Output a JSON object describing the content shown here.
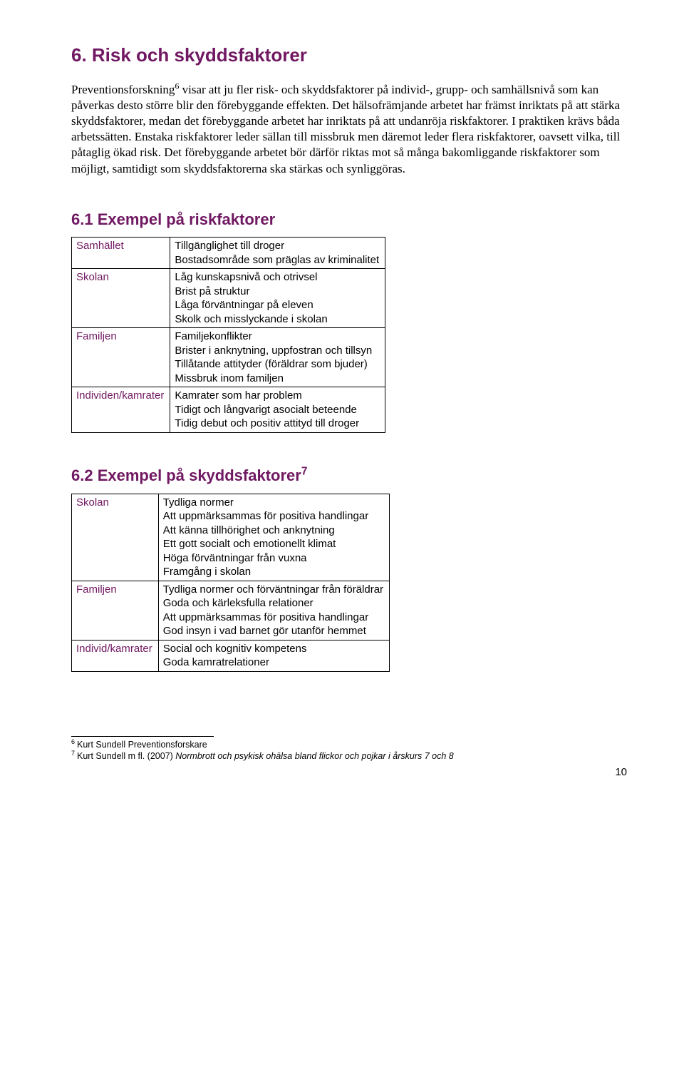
{
  "section6": {
    "title": "6. Risk och skyddsfaktorer",
    "paragraph": "Preventionsforskning",
    "sup1": "6",
    "paragraph_rest": " visar att ju fler risk- och skyddsfaktorer på individ-, grupp- och samhällsnivå som kan påverkas desto större blir den förebyggande effekten. Det hälsofrämjande arbetet har främst inriktats på att stärka skyddsfaktorer, medan det förebyggande arbetet har inriktats på att undanröja riskfaktorer. I praktiken krävs båda arbetssätten. Enstaka riskfaktorer leder sällan till missbruk men däremot leder flera riskfaktorer, oavsett vilka, till påtaglig ökad risk. Det förebyggande arbetet bör därför riktas mot så många bakomliggande riskfaktorer som möjligt, samtidigt som skyddsfaktorerna ska stärkas och synliggöras."
  },
  "section61": {
    "title": "6.1 Exempel på riskfaktorer",
    "rows": [
      {
        "label": "Samhället",
        "content": "Tillgänglighet till droger\nBostadsområde som präglas av kriminalitet"
      },
      {
        "label": "Skolan",
        "content": "Låg kunskapsnivå och otrivsel\nBrist på struktur\nLåga förväntningar på eleven\nSkolk och misslyckande i skolan"
      },
      {
        "label": "Familjen",
        "content": "Familjekonflikter\nBrister i anknytning, uppfostran och tillsyn\nTillåtande attityder (föräldrar som bjuder)\nMissbruk inom familjen"
      },
      {
        "label": "Individen/kamrater",
        "content": "Kamrater som har problem\nTidigt och långvarigt asocialt beteende\nTidig debut och positiv attityd till droger"
      }
    ]
  },
  "section62": {
    "title_pre": "6.2 Exempel på skyddsfaktorer",
    "sup": "7",
    "rows": [
      {
        "label": "Skolan",
        "content": "Tydliga normer\nAtt uppmärksammas för positiva handlingar\nAtt känna tillhörighet och anknytning\nEtt gott socialt och emotionellt klimat\nHöga förväntningar från vuxna\nFramgång i skolan"
      },
      {
        "label": "Familjen",
        "content": "Tydliga normer och förväntningar från föräldrar\nGoda och kärleksfulla relationer\nAtt uppmärksammas för positiva handlingar\nGod insyn i vad barnet gör utanför hemmet"
      },
      {
        "label": "Individ/kamrater",
        "content": "Social och kognitiv kompetens\nGoda kamratrelationer"
      }
    ]
  },
  "footnotes": {
    "f6": {
      "num": "6",
      "text": "Kurt Sundell Preventionsforskare"
    },
    "f7": {
      "num": "7",
      "text_pre": "Kurt Sundell m fl. (2007) ",
      "text_italic": "Normbrott och psykisk ohälsa bland flickor och pojkar i årskurs 7 och 8"
    }
  },
  "page_number": "10"
}
